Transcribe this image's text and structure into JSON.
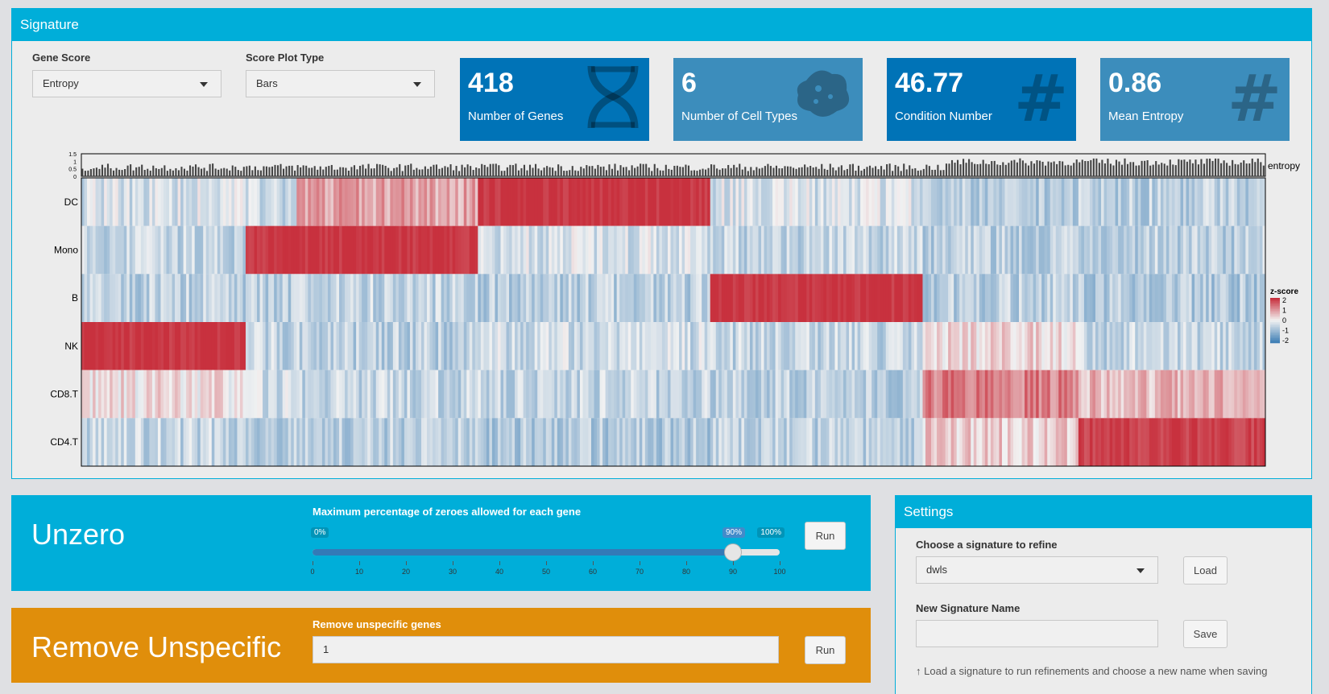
{
  "signature": {
    "title": "Signature",
    "gene_score": {
      "label": "Gene Score",
      "value": "Entropy"
    },
    "score_plot_type": {
      "label": "Score Plot Type",
      "value": "Bars"
    },
    "value_boxes": [
      {
        "value": "418",
        "label": "Number of Genes",
        "icon": "dna-icon",
        "color": "#0073b7"
      },
      {
        "value": "6",
        "label": "Number of Cell Types",
        "icon": "bacterium-icon",
        "color": "#3c8dbc"
      },
      {
        "value": "46.77",
        "label": "Condition Number",
        "icon": "hashtag-icon",
        "color": "#0073b7"
      },
      {
        "value": "0.86",
        "label": "Mean Entropy",
        "icon": "hashtag-icon",
        "color": "#3c8dbc"
      }
    ]
  },
  "chart_data": {
    "type": "heatmap",
    "rows": [
      "DC",
      "Mono",
      "B",
      "NK",
      "CD8.T",
      "CD4.T"
    ],
    "n_columns": 418,
    "row_value_range": [
      -2,
      2
    ],
    "blocks": [
      {
        "range": [
          0,
          58
        ],
        "values": [
          -0.3,
          -0.5,
          -0.6,
          2.0,
          0.2,
          -0.5
        ]
      },
      {
        "range": [
          58,
          76
        ],
        "values": [
          -0.4,
          2.0,
          -0.6,
          -0.5,
          -0.4,
          -0.6
        ]
      },
      {
        "range": [
          76,
          140
        ],
        "values": [
          0.8,
          2.0,
          -0.5,
          -0.6,
          -0.5,
          -0.6
        ]
      },
      {
        "range": [
          140,
          222
        ],
        "values": [
          2.0,
          -0.3,
          -0.6,
          -0.4,
          -0.5,
          -0.7
        ]
      },
      {
        "range": [
          222,
          297
        ],
        "values": [
          -0.3,
          -0.5,
          2.0,
          -0.5,
          -0.6,
          -0.6
        ]
      },
      {
        "range": [
          297,
          352
        ],
        "values": [
          -0.7,
          -0.6,
          -0.6,
          0.3,
          1.2,
          0.4
        ]
      },
      {
        "range": [
          352,
          418
        ],
        "values": [
          -0.6,
          -0.6,
          -0.7,
          -0.5,
          0.6,
          1.8
        ]
      }
    ],
    "top_annotation": {
      "label": "entropy",
      "type": "bar",
      "ticks": [
        "1.5",
        "1",
        "0.5",
        "0"
      ],
      "ylim": [
        0,
        1.5
      ]
    },
    "legend": {
      "title": "z-score",
      "ticks": [
        "2",
        "1",
        "0",
        "-1",
        "-2"
      ],
      "placement": "right"
    },
    "colors": {
      "high": "#c8313e",
      "mid": "#f2f2f2",
      "low": "#3f7fb5"
    }
  },
  "unzero": {
    "title": "Unzero",
    "slider_label": "Maximum percentage of zeroes allowed for each gene",
    "min_label": "0%",
    "max_label": "100%",
    "value_label": "90%",
    "value": 90,
    "ticks": [
      "0",
      "10",
      "20",
      "30",
      "40",
      "50",
      "60",
      "70",
      "80",
      "90",
      "100"
    ],
    "run_label": "Run"
  },
  "remove_unspecific": {
    "title": "Remove Unspecific",
    "input_label": "Remove unspecific genes",
    "input_value": "1",
    "run_label": "Run"
  },
  "settings": {
    "title": "Settings",
    "choose_label": "Choose a signature to refine",
    "choose_value": "dwls",
    "load_label": "Load",
    "name_label": "New Signature Name",
    "name_value": "",
    "save_label": "Save",
    "help_text": "Load a signature to run refinements and choose a new name when saving"
  }
}
